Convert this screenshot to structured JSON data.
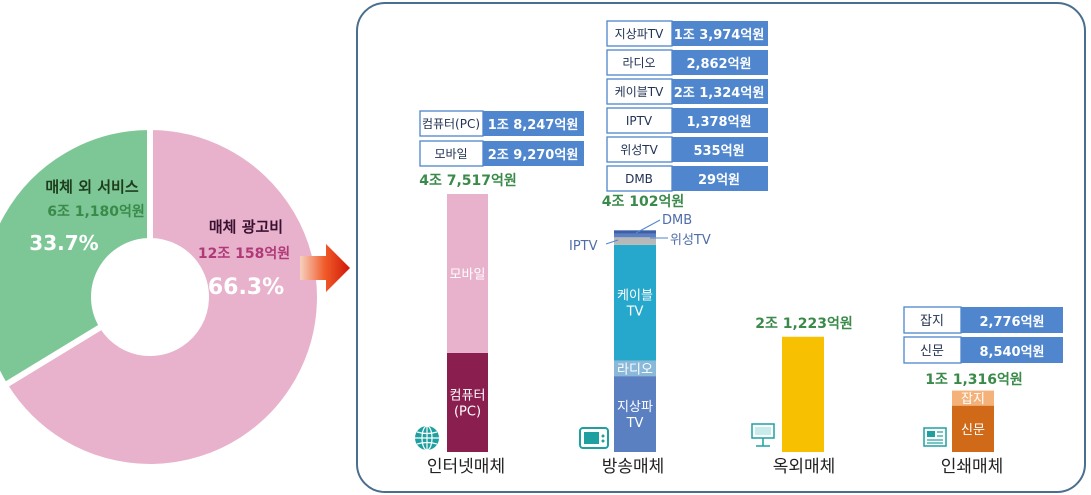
{
  "colors": {
    "pink": "#e8b2cd",
    "pink_text": "#b03a78",
    "green": "#7dc797",
    "green_text": "#3a8a4a",
    "box_blue": "#4f86cd",
    "maroon": "#8a1f4f",
    "teal": "#26a8cc",
    "light_blue": "#8ab8d8",
    "slate": "#5b80c2",
    "gray_band": "#b8b8b8",
    "dark_blue": "#3d5ea8",
    "orange": "#d06a18",
    "light_orange": "#f4b27a",
    "yellow": "#f7c000",
    "frame": "#4a6e8e",
    "arrow": "#e03010"
  },
  "donut": {
    "chart_type": "pie",
    "slices": [
      {
        "name": "매체 광고비",
        "amount": "12조 158억원",
        "percent": "66.3%",
        "value": 66.3
      },
      {
        "name": "매체 외 서비스",
        "amount": "6조 1,180억원",
        "percent": "33.7%",
        "value": 33.7
      }
    ]
  },
  "chart_data": {
    "type": "bar",
    "unit": "억원",
    "categories": [
      "인터넷매체",
      "방송매체",
      "옥외매체",
      "인쇄매체"
    ],
    "totals": [
      "4조 7,517억원",
      "4조 102억원",
      "2조 1,223억원",
      "1조 1,316억원"
    ],
    "total_values": [
      47517,
      40102,
      21223,
      11316
    ],
    "stacks": [
      {
        "category": "인터넷매체",
        "segments": [
          {
            "name": "컴퓨터(PC)",
            "label": "컴퓨터\n(PC)",
            "value": 18247,
            "color": "#8a1f4f"
          },
          {
            "name": "모바일",
            "label": "모바일",
            "value": 29270,
            "color": "#e8b2cd"
          }
        ]
      },
      {
        "category": "방송매체",
        "segments": [
          {
            "name": "지상파TV",
            "label": "지상파\nTV",
            "value": 13974,
            "color": "#5b80c2"
          },
          {
            "name": "라디오",
            "label": "라디오",
            "value": 2862,
            "color": "#8ab8d8"
          },
          {
            "name": "케이블TV",
            "label": "케이블\nTV",
            "value": 21324,
            "color": "#26a8cc"
          },
          {
            "name": "IPTV",
            "label": "",
            "value": 1378,
            "color": "#b8b8b8"
          },
          {
            "name": "위성TV",
            "label": "",
            "value": 535,
            "color": "#5b80c2"
          },
          {
            "name": "DMB",
            "label": "",
            "value": 29,
            "color": "#3d5ea8"
          }
        ]
      },
      {
        "category": "옥외매체",
        "segments": [
          {
            "name": "옥외매체",
            "label": "",
            "value": 21223,
            "color": "#f7c000"
          }
        ]
      },
      {
        "category": "인쇄매체",
        "segments": [
          {
            "name": "신문",
            "label": "신문",
            "value": 8540,
            "color": "#d06a18"
          },
          {
            "name": "잡지",
            "label": "잡지",
            "value": 2776,
            "color": "#f4b27a"
          }
        ]
      }
    ],
    "callouts": [
      "DMB",
      "IPTV",
      "위성TV"
    ]
  },
  "value_tables": {
    "internet": [
      {
        "name": "컴퓨터(PC)",
        "value": "1조 8,247억원"
      },
      {
        "name": "모바일",
        "value": "2조 9,270억원"
      }
    ],
    "broadcast": [
      {
        "name": "지상파TV",
        "value": "1조 3,974억원"
      },
      {
        "name": "라디오",
        "value": "2,862억원"
      },
      {
        "name": "케이블TV",
        "value": "2조 1,324억원"
      },
      {
        "name": "IPTV",
        "value": "1,378억원"
      },
      {
        "name": "위성TV",
        "value": "535억원"
      },
      {
        "name": "DMB",
        "value": "29억원"
      }
    ],
    "print": [
      {
        "name": "잡지",
        "value": "2,776억원"
      },
      {
        "name": "신문",
        "value": "8,540억원"
      }
    ]
  },
  "icons": [
    "globe-icon",
    "tv-icon",
    "billboard-icon",
    "newspaper-icon"
  ]
}
